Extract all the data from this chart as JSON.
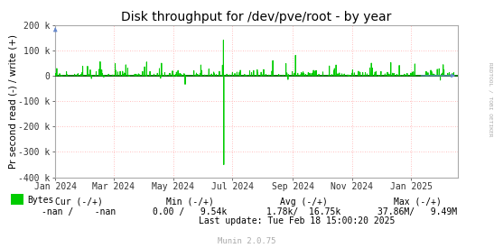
{
  "title": "Disk throughput for /dev/pve/root - by year",
  "ylabel": "Pr second read (-) / write (+)",
  "bg_color": "#ffffff",
  "plot_bg_color": "#ffffff",
  "grid_color": "#ffaaaa",
  "line_color": "#00cc00",
  "zero_line_color": "#000000",
  "xmin": 1704067200,
  "xmax": 1739836800,
  "ymin": -400000,
  "ymax": 200000,
  "yticks": [
    -400000,
    -300000,
    -200000,
    -100000,
    0,
    100000,
    200000
  ],
  "ytick_labels": [
    "-400 k",
    "-300 k",
    "-200 k",
    "-100 k",
    "0",
    "100 k",
    "200 k"
  ],
  "xtick_labels": [
    "Jan 2024",
    "Mar 2024",
    "May 2024",
    "Jul 2024",
    "Sep 2024",
    "Nov 2024",
    "Jan 2025"
  ],
  "xtick_positions": [
    1704067200,
    1709251200,
    1714521600,
    1719792000,
    1725148800,
    1730419200,
    1735689600
  ],
  "legend_label": "Bytes",
  "legend_color": "#00cc00",
  "title_fontsize": 10,
  "tick_fontsize": 7,
  "ylabel_fontsize": 7.5,
  "footer_fontsize": 7
}
